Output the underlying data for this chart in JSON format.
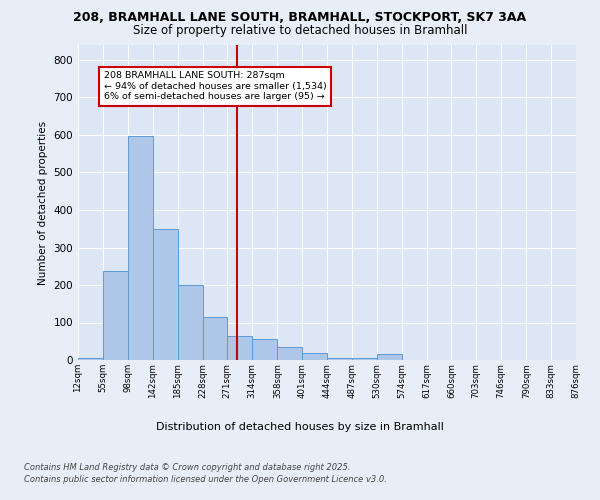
{
  "title_line1": "208, BRAMHALL LANE SOUTH, BRAMHALL, STOCKPORT, SK7 3AA",
  "title_line2": "Size of property relative to detached houses in Bramhall",
  "xlabel": "Distribution of detached houses by size in Bramhall",
  "ylabel": "Number of detached properties",
  "annotation_title": "208 BRAMHALL LANE SOUTH: 287sqm",
  "annotation_line2": "← 94% of detached houses are smaller (1,534)",
  "annotation_line3": "6% of semi-detached houses are larger (95) →",
  "property_size": 287,
  "bin_edges": [
    12,
    55,
    98,
    142,
    185,
    228,
    271,
    314,
    358,
    401,
    444,
    487,
    530,
    574,
    617,
    660,
    703,
    746,
    790,
    833,
    876
  ],
  "bar_heights": [
    5,
    237,
    597,
    350,
    200,
    115,
    65,
    55,
    35,
    20,
    5,
    5,
    15,
    0,
    0,
    0,
    0,
    0,
    0,
    0
  ],
  "bar_color": "#aec6e8",
  "bar_edge_color": "#5b9bd5",
  "vline_color": "#cc0000",
  "vline_x": 287,
  "annotation_box_color": "#cc0000",
  "annotation_text_color": "#000000",
  "background_color": "#e8eef7",
  "plot_bg_color": "#dce6f4",
  "ylim": [
    0,
    840
  ],
  "yticks": [
    0,
    100,
    200,
    300,
    400,
    500,
    600,
    700,
    800
  ],
  "footer_line1": "Contains HM Land Registry data © Crown copyright and database right 2025.",
  "footer_line2": "Contains public sector information licensed under the Open Government Licence v3.0."
}
